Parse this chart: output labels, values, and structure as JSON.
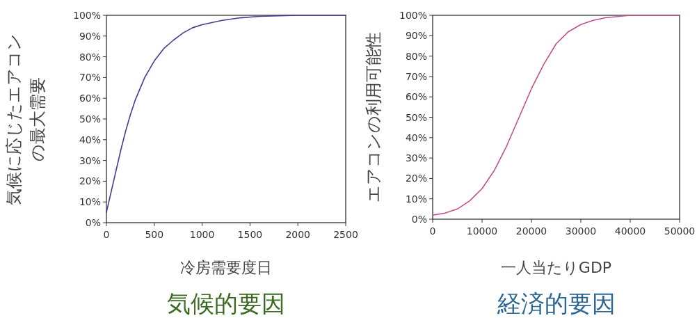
{
  "chart_data": [
    {
      "type": "line",
      "title": "気候的要因",
      "xlabel": "冷房需要度日",
      "ylabel": "気候に応じたエアコンの最大需要",
      "x": [
        0,
        50,
        100,
        150,
        200,
        250,
        300,
        400,
        500,
        600,
        700,
        800,
        900,
        1000,
        1200,
        1400,
        1600,
        1800,
        2000,
        2500
      ],
      "series": [
        {
          "color": "#3f3f8f",
          "values": [
            5,
            15,
            25,
            35,
            44,
            52,
            59,
            70,
            78,
            84,
            88,
            91.5,
            94,
            95.5,
            97.5,
            98.8,
            99.5,
            99.8,
            100,
            100
          ]
        }
      ],
      "xlim": [
        0,
        2500
      ],
      "xticks": [
        0,
        500,
        1000,
        1500,
        2000,
        2500
      ],
      "ylim": [
        0,
        100
      ],
      "yticks": [
        {
          "value": 0,
          "label": "0%"
        },
        {
          "value": 10,
          "label": "10%"
        },
        {
          "value": 20,
          "label": "20%"
        },
        {
          "value": 30,
          "label": "30%"
        },
        {
          "value": 40,
          "label": "40%"
        },
        {
          "value": 50,
          "label": "50%"
        },
        {
          "value": 60,
          "label": "60%"
        },
        {
          "value": 70,
          "label": "70%"
        },
        {
          "value": 80,
          "label": "80%"
        },
        {
          "value": 90,
          "label": "90%"
        },
        {
          "value": 100,
          "label": "100%"
        }
      ],
      "grid": false
    },
    {
      "type": "line",
      "title": "経済的要因",
      "xlabel": "一人当たりGDP",
      "ylabel": "エアコンの利用可能性",
      "x": [
        0,
        2500,
        5000,
        7500,
        10000,
        12500,
        15000,
        17500,
        20000,
        22500,
        25000,
        27500,
        30000,
        32500,
        35000,
        40000,
        50000
      ],
      "series": [
        {
          "color": "#c2508e",
          "values": [
            2,
            3,
            5,
            9,
            15,
            24,
            36,
            50,
            64,
            76,
            86,
            92,
            95.5,
            97.5,
            98.8,
            100,
            100
          ]
        }
      ],
      "xlim": [
        0,
        50000
      ],
      "xticks": [
        0,
        10000,
        20000,
        30000,
        40000,
        50000
      ],
      "ylim": [
        0,
        100
      ],
      "yticks": [
        {
          "value": 0,
          "label": "0%"
        },
        {
          "value": 10,
          "label": "10%"
        },
        {
          "value": 20,
          "label": "20%"
        },
        {
          "value": 30,
          "label": "30%"
        },
        {
          "value": 40,
          "label": "40%"
        },
        {
          "value": 50,
          "label": "50%"
        },
        {
          "value": 60,
          "label": "60%"
        },
        {
          "value": 70,
          "label": "70%"
        },
        {
          "value": 80,
          "label": "80%"
        },
        {
          "value": 90,
          "label": "90%"
        },
        {
          "value": 100,
          "label": "100%"
        }
      ],
      "grid": false
    }
  ]
}
